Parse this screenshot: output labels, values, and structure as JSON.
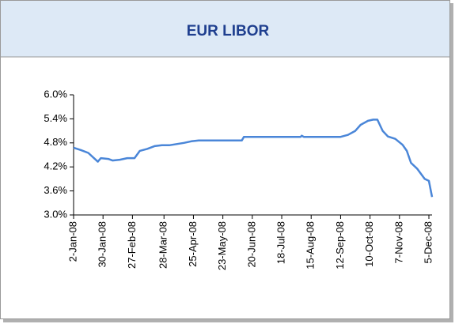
{
  "chart_data": {
    "type": "line",
    "title": "EUR LIBOR",
    "series": [
      {
        "name": "EUR LIBOR",
        "color": "#4a86d8",
        "x": [
          "2008-01-02",
          "2008-01-09",
          "2008-01-16",
          "2008-01-23",
          "2008-01-25",
          "2008-01-28",
          "2008-02-04",
          "2008-02-08",
          "2008-02-15",
          "2008-02-22",
          "2008-02-29",
          "2008-03-05",
          "2008-03-12",
          "2008-03-19",
          "2008-03-26",
          "2008-04-02",
          "2008-04-09",
          "2008-04-16",
          "2008-04-23",
          "2008-04-30",
          "2008-05-14",
          "2008-06-10",
          "2008-06-12",
          "2008-07-15",
          "2008-08-05",
          "2008-08-06",
          "2008-08-08",
          "2008-09-12",
          "2008-09-19",
          "2008-09-26",
          "2008-10-01",
          "2008-10-08",
          "2008-10-13",
          "2008-10-17",
          "2008-10-22",
          "2008-10-27",
          "2008-11-03",
          "2008-11-10",
          "2008-11-14",
          "2008-11-18",
          "2008-11-24",
          "2008-12-01",
          "2008-12-05",
          "2008-12-08"
        ],
        "values": [
          4.68,
          4.62,
          4.55,
          4.38,
          4.33,
          4.42,
          4.4,
          4.36,
          4.38,
          4.42,
          4.42,
          4.6,
          4.65,
          4.72,
          4.74,
          4.74,
          4.77,
          4.8,
          4.84,
          4.86,
          4.86,
          4.86,
          4.95,
          4.95,
          4.95,
          4.98,
          4.95,
          4.95,
          5.0,
          5.1,
          5.25,
          5.35,
          5.38,
          5.38,
          5.1,
          4.96,
          4.9,
          4.75,
          4.6,
          4.3,
          4.15,
          3.9,
          3.85,
          3.45
        ]
      }
    ],
    "ylim": [
      3.0,
      6.0
    ],
    "yticks": [
      {
        "value": 3.0,
        "label": "3.0%"
      },
      {
        "value": 3.6,
        "label": "3.6%"
      },
      {
        "value": 4.2,
        "label": "4.2%"
      },
      {
        "value": 4.8,
        "label": "4.8%"
      },
      {
        "value": 5.4,
        "label": "5.4%"
      },
      {
        "value": 6.0,
        "label": "6.0%"
      }
    ],
    "xlim": [
      "2008-01-02",
      "2008-12-08"
    ],
    "xticks": [
      {
        "value": "2008-01-02",
        "label": "2-Jan-08"
      },
      {
        "value": "2008-01-30",
        "label": "30-Jan-08"
      },
      {
        "value": "2008-02-27",
        "label": "27-Feb-08"
      },
      {
        "value": "2008-03-28",
        "label": "28-Mar-08"
      },
      {
        "value": "2008-04-25",
        "label": "25-Apr-08"
      },
      {
        "value": "2008-05-23",
        "label": "23-May-08"
      },
      {
        "value": "2008-06-20",
        "label": "20-Jun-08"
      },
      {
        "value": "2008-07-18",
        "label": "18-Jul-08"
      },
      {
        "value": "2008-08-15",
        "label": "15-Aug-08"
      },
      {
        "value": "2008-09-12",
        "label": "12-Sep-08"
      },
      {
        "value": "2008-10-10",
        "label": "10-Oct-08"
      },
      {
        "value": "2008-11-07",
        "label": "7-Nov-08"
      },
      {
        "value": "2008-12-05",
        "label": "5-Dec-08"
      }
    ]
  }
}
